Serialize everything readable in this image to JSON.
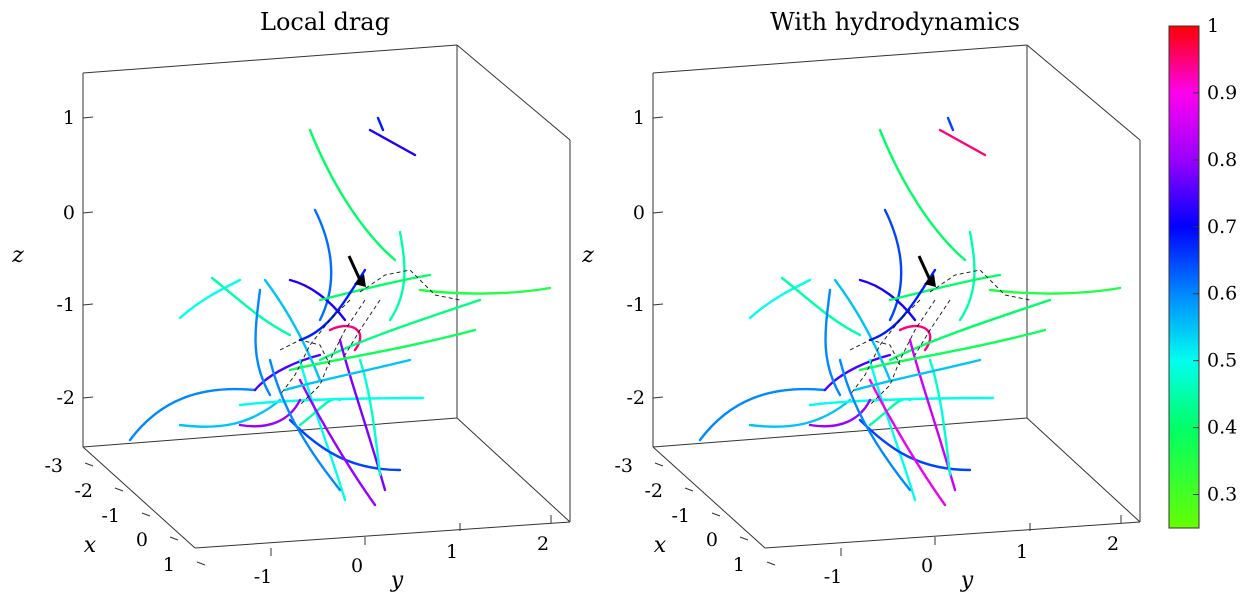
{
  "chart_data": [
    {
      "type": "3d-line",
      "title": "Local drag",
      "xlabel": "x",
      "ylabel": "y",
      "zlabel": "z",
      "x_ticks": [
        "-3",
        "-2",
        "-1",
        "0",
        "1"
      ],
      "y_ticks": [
        "-1",
        "0",
        "1",
        "2"
      ],
      "z_ticks": [
        "1",
        "0",
        "-1",
        "-2"
      ],
      "xlim": [
        -3,
        1
      ],
      "ylim": [
        -1.6,
        2.4
      ],
      "zlim": [
        -2.5,
        1.5
      ],
      "arrow_annotation": true,
      "filament_color_values": [
        0.6,
        0.55,
        0.45,
        0.5,
        0.75,
        0.8,
        0.62,
        0.4,
        0.5,
        0.45,
        0.72,
        0.68,
        0.45,
        0.35,
        0.95,
        0.55,
        0.6,
        0.72,
        0.42,
        0.5,
        0.65,
        0.78,
        0.8,
        0.48,
        0.6,
        0.4,
        0.38,
        0.55,
        0.68
      ]
    },
    {
      "type": "3d-line",
      "title": "With hydrodynamics",
      "xlabel": "x",
      "ylabel": "y",
      "zlabel": "z",
      "x_ticks": [
        "-3",
        "-2",
        "-1",
        "0",
        "1"
      ],
      "y_ticks": [
        "-1",
        "0",
        "1",
        "2"
      ],
      "z_ticks": [
        "1",
        "0",
        "-1",
        "-2"
      ],
      "xlim": [
        -3,
        1
      ],
      "ylim": [
        -1.6,
        2.4
      ],
      "zlim": [
        -2.5,
        1.5
      ],
      "arrow_annotation": true,
      "filament_color_values": [
        0.6,
        0.55,
        0.45,
        0.5,
        0.75,
        0.8,
        0.65,
        0.4,
        0.5,
        0.45,
        0.95,
        0.65,
        0.45,
        0.35,
        0.95,
        0.55,
        0.6,
        0.72,
        0.4,
        0.5,
        0.65,
        0.85,
        0.88,
        0.48,
        0.6,
        0.4,
        0.38,
        0.55,
        0.68
      ]
    }
  ],
  "colorbar": {
    "min": 0.25,
    "max": 1,
    "ticks": [
      "1",
      "0.9",
      "0.8",
      "0.7",
      "0.6",
      "0.5",
      "0.4",
      "0.3"
    ],
    "tick_values": [
      1,
      0.9,
      0.8,
      0.7,
      0.6,
      0.5,
      0.4,
      0.3
    ],
    "stops": [
      {
        "v": 0.25,
        "color": "#66ff00"
      },
      {
        "v": 0.4,
        "color": "#00ff66"
      },
      {
        "v": 0.5,
        "color": "#00ffee"
      },
      {
        "v": 0.6,
        "color": "#0088ff"
      },
      {
        "v": 0.7,
        "color": "#0000ff"
      },
      {
        "v": 0.8,
        "color": "#9900ff"
      },
      {
        "v": 0.9,
        "color": "#ff00ee"
      },
      {
        "v": 1.0,
        "color": "#ff0000"
      }
    ]
  }
}
